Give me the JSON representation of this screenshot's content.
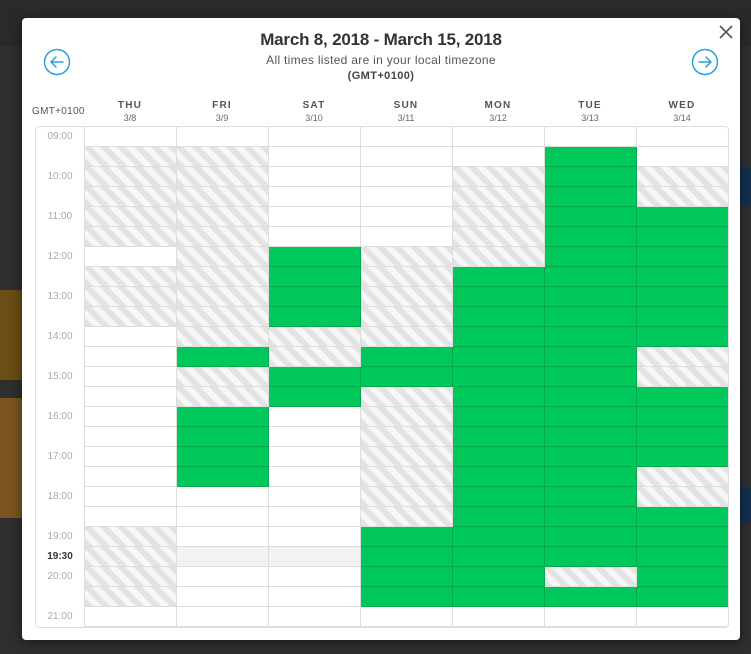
{
  "header": {
    "title": "March 8, 2018 - March 15, 2018",
    "subtitle": "All times listed are in your local timezone",
    "timezone": "(GMT+0100)"
  },
  "timezone_label": "GMT+0100",
  "days": [
    {
      "name": "THU",
      "date": "3/8"
    },
    {
      "name": "FRI",
      "date": "3/9"
    },
    {
      "name": "SAT",
      "date": "3/10"
    },
    {
      "name": "SUN",
      "date": "3/11"
    },
    {
      "name": "MON",
      "date": "3/12"
    },
    {
      "name": "TUE",
      "date": "3/13"
    },
    {
      "name": "WED",
      "date": "3/14"
    }
  ],
  "time_labels": [
    {
      "text": "09:00",
      "slot": 0,
      "bold": false
    },
    {
      "text": "10:00",
      "slot": 2,
      "bold": false
    },
    {
      "text": "11:00",
      "slot": 4,
      "bold": false
    },
    {
      "text": "12:00",
      "slot": 6,
      "bold": false
    },
    {
      "text": "13:00",
      "slot": 8,
      "bold": false
    },
    {
      "text": "14:00",
      "slot": 10,
      "bold": false
    },
    {
      "text": "15:00",
      "slot": 12,
      "bold": false
    },
    {
      "text": "16:00",
      "slot": 14,
      "bold": false
    },
    {
      "text": "17:00",
      "slot": 16,
      "bold": false
    },
    {
      "text": "18:00",
      "slot": 18,
      "bold": false
    },
    {
      "text": "19:00",
      "slot": 20,
      "bold": false
    },
    {
      "text": "19:30",
      "slot": 21,
      "bold": true
    },
    {
      "text": "20:00",
      "slot": 22,
      "bold": false
    },
    {
      "text": "21:00",
      "slot": 24,
      "bold": false
    }
  ],
  "slot_states_legend": {
    "0": "free",
    "1": "unavailable",
    "2": "available"
  },
  "slots": [
    [
      0,
      1,
      1,
      1,
      1,
      1,
      0,
      1,
      1,
      1,
      0,
      0,
      0,
      0,
      0,
      0,
      0,
      0,
      0,
      0,
      1,
      1,
      1,
      1,
      0
    ],
    [
      0,
      1,
      1,
      1,
      1,
      1,
      1,
      1,
      1,
      1,
      1,
      2,
      1,
      1,
      2,
      2,
      2,
      2,
      0,
      0,
      0,
      0,
      0,
      0,
      0
    ],
    [
      0,
      0,
      0,
      0,
      0,
      0,
      2,
      2,
      2,
      2,
      1,
      1,
      2,
      2,
      0,
      0,
      0,
      0,
      0,
      0,
      0,
      0,
      0,
      0,
      0
    ],
    [
      0,
      0,
      0,
      0,
      0,
      0,
      1,
      1,
      1,
      1,
      1,
      2,
      2,
      1,
      1,
      1,
      1,
      1,
      1,
      1,
      2,
      2,
      2,
      2,
      0
    ],
    [
      0,
      0,
      1,
      1,
      1,
      1,
      1,
      2,
      2,
      2,
      2,
      2,
      2,
      2,
      2,
      2,
      2,
      2,
      2,
      2,
      2,
      2,
      2,
      2,
      0
    ],
    [
      0,
      2,
      2,
      2,
      2,
      2,
      2,
      2,
      2,
      2,
      2,
      2,
      2,
      2,
      2,
      2,
      2,
      2,
      2,
      2,
      2,
      2,
      1,
      2,
      0
    ],
    [
      0,
      0,
      1,
      1,
      2,
      2,
      2,
      2,
      2,
      2,
      2,
      1,
      1,
      2,
      2,
      2,
      2,
      1,
      1,
      2,
      2,
      2,
      2,
      2,
      0
    ]
  ]
}
